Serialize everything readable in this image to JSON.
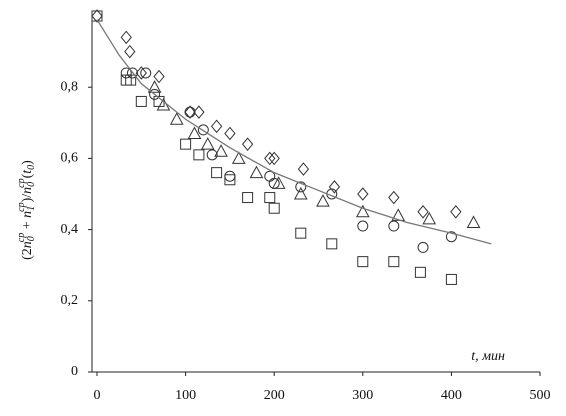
{
  "chart_data": {
    "type": "scatter",
    "ylabel": [
      {
        "text": "(2",
        "pos": "base"
      },
      {
        "text": "n",
        "pos": "italic"
      },
      {
        "text": "0",
        "pos": "sub"
      },
      {
        "text": "ср",
        "pos": "sup"
      },
      {
        "text": " + ",
        "pos": "base"
      },
      {
        "text": "n",
        "pos": "italic"
      },
      {
        "text": "1",
        "pos": "sub"
      },
      {
        "text": "ср",
        "pos": "sup"
      },
      {
        "text": ")/",
        "pos": "base"
      },
      {
        "text": "n",
        "pos": "italic"
      },
      {
        "text": "0",
        "pos": "sub"
      },
      {
        "text": "ср",
        "pos": "sup"
      },
      {
        "text": "(",
        "pos": "base"
      },
      {
        "text": "t",
        "pos": "italic"
      },
      {
        "text": "0",
        "pos": "sub"
      },
      {
        "text": ")",
        "pos": "base"
      }
    ],
    "xlabel": "t, мин",
    "xlim": [
      0,
      500
    ],
    "xticks": [
      0,
      100,
      200,
      300,
      400,
      500
    ],
    "ylim": [
      0,
      1
    ],
    "yticks": [
      0,
      {
        "value": 0.2,
        "label": "0,2"
      },
      {
        "value": 0.4,
        "label": "0,4"
      },
      {
        "value": 0.6,
        "label": "0,6"
      },
      {
        "value": 0.8,
        "label": "0,8"
      }
    ],
    "grid": false,
    "series": [
      {
        "marker": "diamond",
        "color": "#333333",
        "x": [
          0,
          33,
          37,
          50,
          70,
          105,
          115,
          135,
          150,
          170,
          195,
          200,
          233,
          268,
          300,
          335,
          368,
          405
        ],
        "values": [
          1.0,
          0.94,
          0.9,
          0.84,
          0.83,
          0.73,
          0.73,
          0.69,
          0.67,
          0.64,
          0.6,
          0.6,
          0.57,
          0.52,
          0.5,
          0.49,
          0.45,
          0.45
        ]
      },
      {
        "marker": "circle",
        "color": "#333333",
        "x": [
          33,
          40,
          55,
          65,
          105,
          120,
          130,
          150,
          195,
          200,
          230,
          265,
          300,
          335,
          368,
          400
        ],
        "values": [
          0.84,
          0.84,
          0.84,
          0.78,
          0.73,
          0.68,
          0.61,
          0.55,
          0.55,
          0.53,
          0.52,
          0.5,
          0.41,
          0.41,
          0.35,
          0.38
        ]
      },
      {
        "marker": "triangle",
        "color": "#333333",
        "x": [
          65,
          75,
          90,
          110,
          125,
          140,
          160,
          180,
          205,
          230,
          255,
          300,
          340,
          375,
          425
        ],
        "values": [
          0.8,
          0.75,
          0.71,
          0.67,
          0.64,
          0.62,
          0.6,
          0.56,
          0.53,
          0.5,
          0.48,
          0.45,
          0.44,
          0.43,
          0.42
        ]
      },
      {
        "marker": "square",
        "color": "#333333",
        "x": [
          0,
          33,
          38,
          50,
          70,
          100,
          115,
          135,
          150,
          170,
          195,
          200,
          230,
          265,
          300,
          335,
          365,
          400
        ],
        "values": [
          1.0,
          0.82,
          0.82,
          0.76,
          0.76,
          0.64,
          0.61,
          0.56,
          0.54,
          0.49,
          0.49,
          0.46,
          0.39,
          0.36,
          0.31,
          0.31,
          0.28,
          0.26
        ]
      },
      {
        "marker": "line",
        "color": "#777777",
        "x": [
          0,
          25,
          50,
          100,
          150,
          200,
          250,
          300,
          350,
          400,
          445
        ],
        "values": [
          0.99,
          0.89,
          0.81,
          0.71,
          0.63,
          0.56,
          0.51,
          0.46,
          0.42,
          0.39,
          0.36
        ]
      }
    ]
  }
}
